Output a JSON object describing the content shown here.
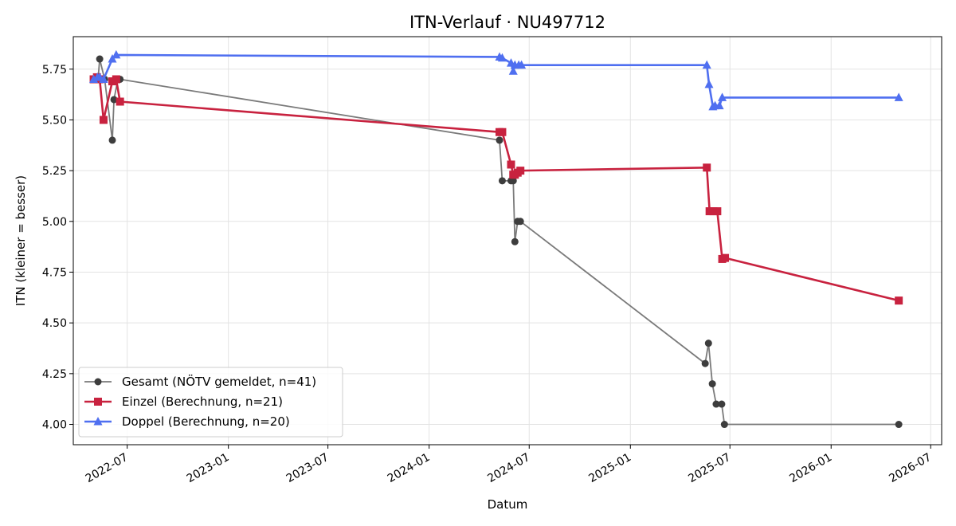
{
  "chart_data": {
    "type": "line",
    "title": "ITN-Verlauf · NU497712",
    "xlabel": "Datum",
    "ylabel": "ITN  (kleiner = besser)",
    "x_axis_type": "date",
    "xlim": [
      "2022-03-25",
      "2026-07-21"
    ],
    "ylim": [
      3.9,
      5.91
    ],
    "xticks": [
      "2022-07-01",
      "2023-01-01",
      "2023-07-01",
      "2024-01-01",
      "2024-07-01",
      "2025-01-01",
      "2025-07-01",
      "2026-01-01",
      "2026-07-01"
    ],
    "xtick_labels": [
      "2022-07",
      "2023-01",
      "2023-07",
      "2024-01",
      "2024-07",
      "2025-01",
      "2025-07",
      "2026-01",
      "2026-07"
    ],
    "yticks": [
      4.0,
      4.25,
      4.5,
      4.75,
      5.0,
      5.25,
      5.5,
      5.75
    ],
    "ytick_labels": [
      "4.00",
      "4.25",
      "4.50",
      "4.75",
      "5.00",
      "5.25",
      "5.50",
      "5.75"
    ],
    "grid": true,
    "legend_position": "lower-left",
    "series": [
      {
        "name": "Gesamt (NÖTV gemeldet, n=41)",
        "color": "#7a7a7a",
        "marker_color": "#3d3d3d",
        "marker": "circle",
        "x": [
          "2022-05-01",
          "2022-05-09",
          "2022-05-12",
          "2022-05-21",
          "2022-06-04",
          "2022-06-07",
          "2022-06-14",
          "2022-06-18",
          "2024-05-08",
          "2024-05-13",
          "2024-05-29",
          "2024-06-02",
          "2024-06-05",
          "2024-06-10",
          "2024-06-15",
          "2025-05-17",
          "2025-05-23",
          "2025-05-30",
          "2025-06-06",
          "2025-06-16",
          "2025-06-21",
          "2026-05-04"
        ],
        "y": [
          5.7,
          5.7,
          5.8,
          5.7,
          5.4,
          5.6,
          5.7,
          5.7,
          5.4,
          5.2,
          5.2,
          5.2,
          4.9,
          5.0,
          5.0,
          4.3,
          4.4,
          4.2,
          4.1,
          4.1,
          4.0,
          4.0
        ]
      },
      {
        "name": "Einzel (Berechnung, n=21)",
        "color": "#c8223f",
        "marker": "square",
        "x": [
          "2022-05-01",
          "2022-05-07",
          "2022-05-12",
          "2022-05-19",
          "2022-06-04",
          "2022-06-11",
          "2022-06-18",
          "2024-05-08",
          "2024-05-13",
          "2024-05-29",
          "2024-06-02",
          "2024-06-05",
          "2024-06-10",
          "2024-06-15",
          "2025-05-20",
          "2025-05-25",
          "2025-06-01",
          "2025-06-08",
          "2025-06-17",
          "2025-06-22",
          "2026-05-04"
        ],
        "y": [
          5.7,
          5.71,
          5.7,
          5.5,
          5.69,
          5.7,
          5.59,
          5.44,
          5.44,
          5.28,
          5.23,
          5.23,
          5.24,
          5.25,
          5.265,
          5.05,
          5.05,
          5.05,
          4.815,
          4.82,
          4.61
        ]
      },
      {
        "name": "Doppel (Berechnung, n=20)",
        "color": "#4f6ff0",
        "marker": "triangle",
        "x": [
          "2022-05-01",
          "2022-05-08",
          "2022-05-12",
          "2022-05-19",
          "2022-06-04",
          "2022-06-11",
          "2024-05-08",
          "2024-05-13",
          "2024-05-29",
          "2024-06-02",
          "2024-06-05",
          "2024-06-12",
          "2024-06-17",
          "2025-05-20",
          "2025-05-24",
          "2025-05-31",
          "2025-06-04",
          "2025-06-12",
          "2025-06-17",
          "2026-05-04"
        ],
        "y": [
          5.7,
          5.71,
          5.71,
          5.7,
          5.8,
          5.82,
          5.81,
          5.805,
          5.78,
          5.74,
          5.77,
          5.77,
          5.77,
          5.77,
          5.675,
          5.565,
          5.57,
          5.57,
          5.61,
          5.61
        ]
      }
    ]
  }
}
